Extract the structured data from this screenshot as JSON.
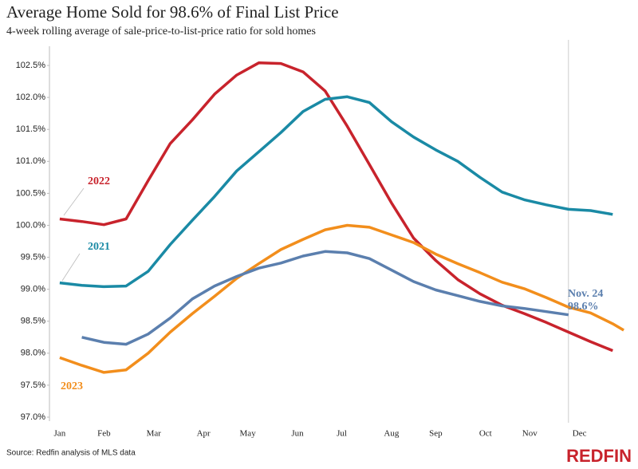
{
  "chart_data": {
    "type": "line",
    "title": "Average Home Sold for 98.6% of Final List Price",
    "subtitle": "4-week rolling average of sale-price-to-list-price ratio for sold homes",
    "x": [
      1,
      3,
      5,
      7,
      9,
      11,
      13,
      15,
      17,
      19,
      21,
      23,
      25,
      27,
      29,
      31,
      33,
      35,
      37,
      39,
      41,
      43,
      45,
      47,
      49,
      51,
      52
    ],
    "xlim": [
      0,
      53
    ],
    "xticks": [
      {
        "value": 1,
        "label": "Jan"
      },
      {
        "value": 5,
        "label": "Feb"
      },
      {
        "value": 9.5,
        "label": "Mar"
      },
      {
        "value": 14,
        "label": "Apr"
      },
      {
        "value": 18,
        "label": "May"
      },
      {
        "value": 22.5,
        "label": "Jun"
      },
      {
        "value": 26.5,
        "label": "Jul"
      },
      {
        "value": 31,
        "label": "Aug"
      },
      {
        "value": 35,
        "label": "Sep"
      },
      {
        "value": 39.5,
        "label": "Oct"
      },
      {
        "value": 43.5,
        "label": "Nov"
      },
      {
        "value": 48,
        "label": "Dec"
      }
    ],
    "ylim": [
      97,
      102.75
    ],
    "yticks": [
      {
        "value": 97,
        "label": "97.0%"
      },
      {
        "value": 97.5,
        "label": "97.5%"
      },
      {
        "value": 98,
        "label": "98.0%"
      },
      {
        "value": 98.5,
        "label": "98.5%"
      },
      {
        "value": 99,
        "label": "99.0%"
      },
      {
        "value": 99.5,
        "label": "99.5%"
      },
      {
        "value": 100,
        "label": "100.0%"
      },
      {
        "value": 100.5,
        "label": "100.5%"
      },
      {
        "value": 101,
        "label": "101.0%"
      },
      {
        "value": 101.5,
        "label": "101.5%"
      },
      {
        "value": 102,
        "label": "102.0%"
      },
      {
        "value": 102.5,
        "label": "102.5%"
      }
    ],
    "grid": false,
    "vline_x": 47,
    "series": [
      {
        "name": "2022",
        "color": "#c8232c",
        "values": [
          100.1,
          100.06,
          100.01,
          100.1,
          100.7,
          101.28,
          101.65,
          102.05,
          102.35,
          102.54,
          102.53,
          102.4,
          102.1,
          101.55,
          100.95,
          100.35,
          99.8,
          99.45,
          99.15,
          98.93,
          98.75,
          98.62,
          98.48,
          98.33,
          98.18,
          98.04,
          null
        ]
      },
      {
        "name": "2021",
        "color": "#1a8aa5",
        "values": [
          99.1,
          99.06,
          99.04,
          99.05,
          99.28,
          99.7,
          100.08,
          100.45,
          100.85,
          101.15,
          101.45,
          101.78,
          101.97,
          102.01,
          101.92,
          101.62,
          101.38,
          101.18,
          101.0,
          100.75,
          100.52,
          100.4,
          100.32,
          100.25,
          100.23,
          100.17,
          null
        ]
      },
      {
        "name": "2023",
        "color": "#f28e1c",
        "values": [
          97.93,
          97.81,
          97.7,
          97.74,
          98.0,
          98.33,
          98.62,
          98.89,
          99.17,
          99.4,
          99.62,
          99.78,
          99.93,
          100.0,
          99.97,
          99.85,
          99.73,
          99.55,
          99.4,
          99.26,
          99.11,
          99.01,
          98.87,
          98.72,
          98.63,
          98.46,
          98.36
        ]
      },
      {
        "color": "#5b7fae",
        "values": [
          null,
          98.25,
          98.17,
          98.14,
          98.3,
          98.55,
          98.85,
          99.05,
          99.2,
          99.33,
          99.41,
          99.52,
          99.59,
          99.57,
          99.48,
          99.3,
          99.12,
          98.99,
          98.9,
          98.81,
          98.74,
          98.7,
          98.65,
          98.6,
          null,
          null,
          null
        ]
      }
    ],
    "annotations": [
      "Nov. 24",
      "98.6%"
    ]
  },
  "source": "Source: Redfin analysis of MLS data",
  "logo": "REDFIN"
}
